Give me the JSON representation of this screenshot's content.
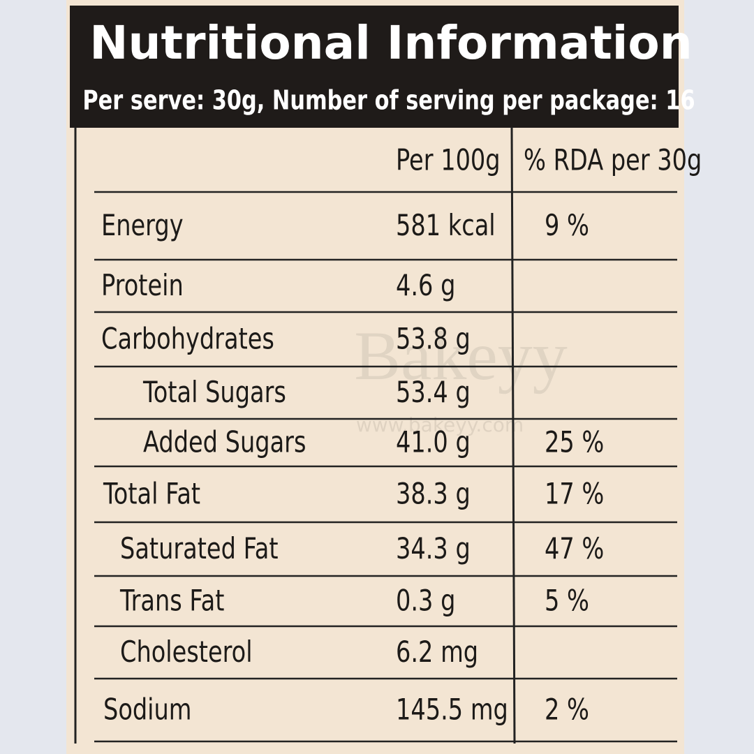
{
  "header": {
    "title": "Nutritional Information",
    "subtitle": "Per serve: 30g,  Number of serving per package: 16"
  },
  "table": {
    "columns": [
      "Per 100g",
      "% RDA per 30g"
    ],
    "rows": [
      {
        "nutrient": "Energy",
        "per_100g": "581 kcal",
        "rda": "9 %"
      },
      {
        "nutrient": "Protein",
        "per_100g": "4.6 g"
      },
      {
        "nutrient": "Carbohydrates",
        "per_100g": "53.8 g"
      },
      {
        "nutrient": "Total Sugars",
        "per_100g": "53.4 g"
      },
      {
        "nutrient": "Added Sugars",
        "per_100g": "41.0 g",
        "rda": "25 %"
      },
      {
        "nutrient": "Total Fat",
        "per_100g": "38.3 g",
        "rda": "17 %"
      },
      {
        "nutrient": "Saturated Fat",
        "per_100g": "34.3 g",
        "rda": "47 %"
      },
      {
        "nutrient": "Trans Fat",
        "per_100g": "0.3 g",
        "rda": "5 %"
      },
      {
        "nutrient": "Cholesterol",
        "per_100g": "6.2 mg"
      },
      {
        "nutrient": "Sodium",
        "per_100g": "145.5 mg",
        "rda": "2 %"
      }
    ]
  },
  "watermark": {
    "brand": "Bakeyy",
    "url": "www.bakeyy.com"
  }
}
